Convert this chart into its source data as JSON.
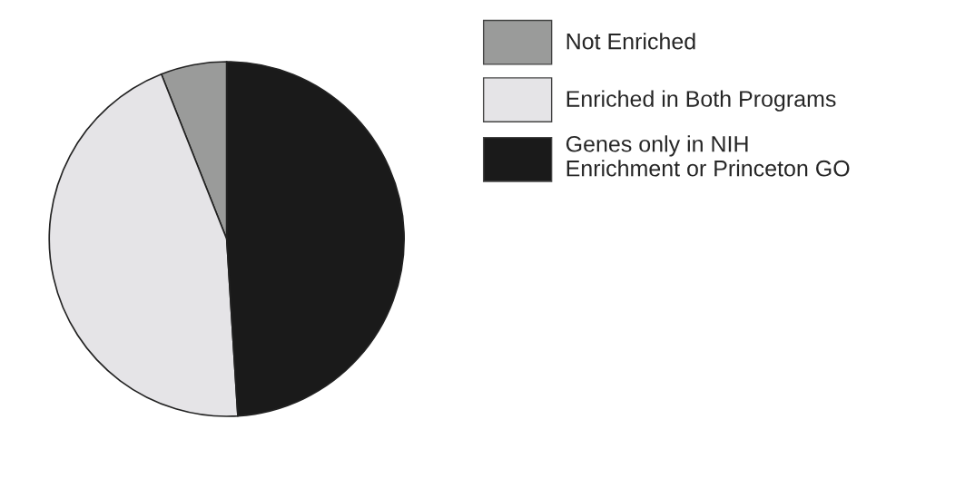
{
  "chart_data": {
    "type": "pie",
    "categories": [
      "Not Enriched",
      "Enriched in Both Programs",
      "Genes only in NIH Enrichment or Princeton GO"
    ],
    "values": [
      6,
      45,
      49
    ],
    "colors": [
      "#9a9b9a",
      "#e5e4e7",
      "#1a1a1a"
    ],
    "legend": "right"
  }
}
